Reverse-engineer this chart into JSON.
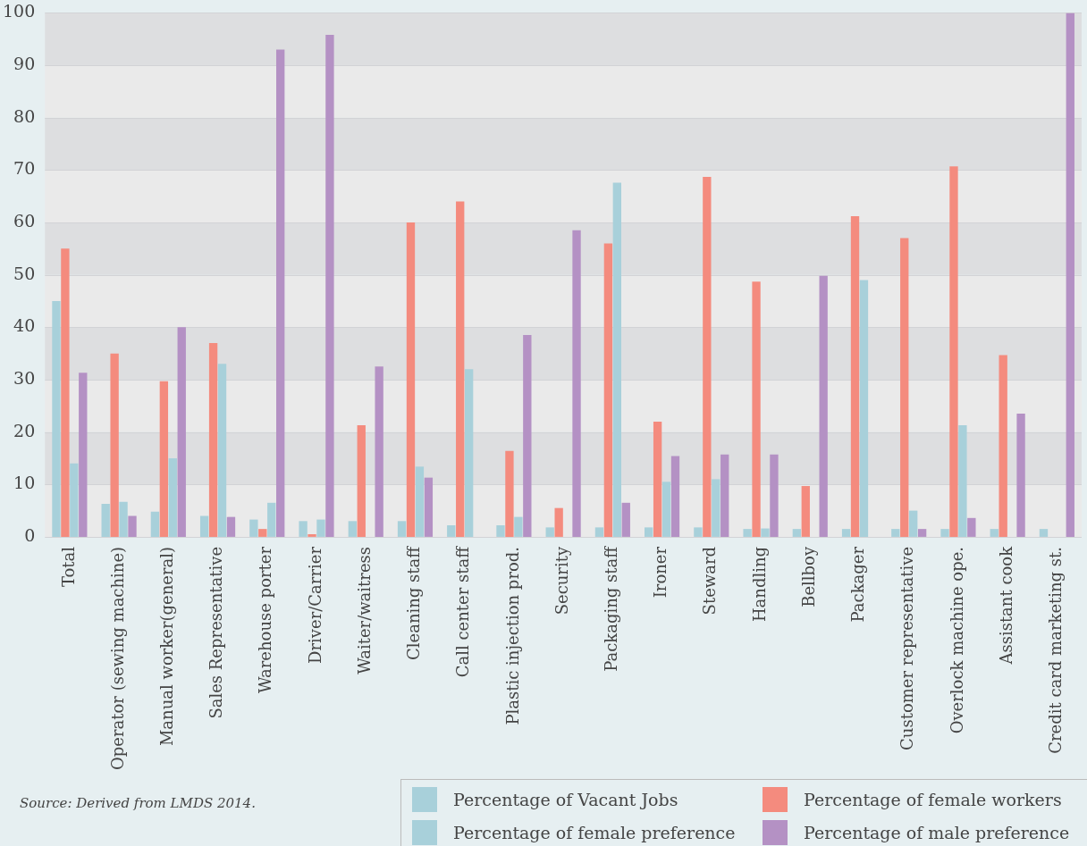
{
  "chart_data": {
    "type": "bar",
    "categories": [
      "Total",
      "Operator (sewing machine)",
      "Manual worker(general)",
      "Sales Representative",
      "Warehouse porter",
      "Driver/Carrier",
      "Waiter/waitress",
      "Cleaning staff",
      "Call center staff",
      "Plastic injection prod.",
      "Security",
      "Packaging staff",
      "Ironer",
      "Steward",
      "Handling",
      "Bellboy",
      "Packager",
      "Customer representative",
      "Overlock machine ope.",
      "Assistant cook",
      "Credit card marketing st."
    ],
    "series": [
      {
        "name": "Percentage of Vacant Jobs",
        "color": "#a8d0da",
        "values": [
          45,
          6.3,
          4.8,
          4,
          3.3,
          3,
          3,
          3,
          2.2,
          2.2,
          1.8,
          1.8,
          1.8,
          1.8,
          1.5,
          1.5,
          1.5,
          1.5,
          1.5,
          1.5,
          1.5
        ]
      },
      {
        "name": "Percentage of female workers",
        "color": "#f48b7e",
        "values": [
          55,
          35,
          29.7,
          37,
          1.5,
          0.5,
          21.3,
          60,
          64,
          16.4,
          5.5,
          56,
          22,
          68.7,
          48.7,
          9.7,
          61.2,
          57,
          70.7,
          34.7,
          0
        ]
      },
      {
        "name": "Percentage of female preference",
        "color": "#a8d0da",
        "values": [
          14,
          6.7,
          15,
          33,
          6.5,
          3.3,
          0,
          13.4,
          32,
          3.8,
          0,
          67.6,
          10.5,
          11,
          1.6,
          0,
          49,
          5,
          21.3,
          0,
          0
        ]
      },
      {
        "name": "Percentage of male preference",
        "color": "#b491c4",
        "values": [
          31.3,
          4,
          40,
          3.8,
          93,
          95.8,
          32.5,
          11.3,
          0,
          38.5,
          58.5,
          6.5,
          15.4,
          15.7,
          15.7,
          49.8,
          0,
          1.5,
          3.6,
          23.5,
          100
        ]
      }
    ],
    "ylim": [
      0,
      100
    ],
    "yticks": [
      0,
      10,
      20,
      30,
      40,
      50,
      60,
      70,
      80,
      90,
      100
    ],
    "grid": true,
    "legend": "bottom right",
    "annotations": [
      "Source: Derived from LMDS 2014."
    ]
  }
}
